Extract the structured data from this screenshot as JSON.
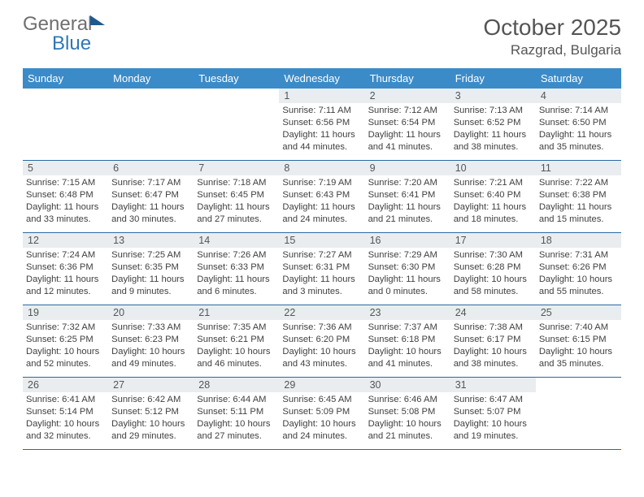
{
  "logo": {
    "text1": "General",
    "text2": "Blue"
  },
  "title": "October 2025",
  "location": "Razgrad, Bulgaria",
  "colors": {
    "header_bg": "#3b8bc8",
    "header_text": "#ffffff",
    "daynum_bg": "#e9edf0",
    "row_border": "#2a6aa0",
    "text": "#404040",
    "logo_gray": "#6f6f6f",
    "logo_blue": "#2e77b8"
  },
  "day_headers": [
    "Sunday",
    "Monday",
    "Tuesday",
    "Wednesday",
    "Thursday",
    "Friday",
    "Saturday"
  ],
  "weeks": [
    [
      {
        "blank": true
      },
      {
        "blank": true
      },
      {
        "blank": true
      },
      {
        "num": "1",
        "sunrise": "Sunrise: 7:11 AM",
        "sunset": "Sunset: 6:56 PM",
        "daylight": "Daylight: 11 hours and 44 minutes."
      },
      {
        "num": "2",
        "sunrise": "Sunrise: 7:12 AM",
        "sunset": "Sunset: 6:54 PM",
        "daylight": "Daylight: 11 hours and 41 minutes."
      },
      {
        "num": "3",
        "sunrise": "Sunrise: 7:13 AM",
        "sunset": "Sunset: 6:52 PM",
        "daylight": "Daylight: 11 hours and 38 minutes."
      },
      {
        "num": "4",
        "sunrise": "Sunrise: 7:14 AM",
        "sunset": "Sunset: 6:50 PM",
        "daylight": "Daylight: 11 hours and 35 minutes."
      }
    ],
    [
      {
        "num": "5",
        "sunrise": "Sunrise: 7:15 AM",
        "sunset": "Sunset: 6:48 PM",
        "daylight": "Daylight: 11 hours and 33 minutes."
      },
      {
        "num": "6",
        "sunrise": "Sunrise: 7:17 AM",
        "sunset": "Sunset: 6:47 PM",
        "daylight": "Daylight: 11 hours and 30 minutes."
      },
      {
        "num": "7",
        "sunrise": "Sunrise: 7:18 AM",
        "sunset": "Sunset: 6:45 PM",
        "daylight": "Daylight: 11 hours and 27 minutes."
      },
      {
        "num": "8",
        "sunrise": "Sunrise: 7:19 AM",
        "sunset": "Sunset: 6:43 PM",
        "daylight": "Daylight: 11 hours and 24 minutes."
      },
      {
        "num": "9",
        "sunrise": "Sunrise: 7:20 AM",
        "sunset": "Sunset: 6:41 PM",
        "daylight": "Daylight: 11 hours and 21 minutes."
      },
      {
        "num": "10",
        "sunrise": "Sunrise: 7:21 AM",
        "sunset": "Sunset: 6:40 PM",
        "daylight": "Daylight: 11 hours and 18 minutes."
      },
      {
        "num": "11",
        "sunrise": "Sunrise: 7:22 AM",
        "sunset": "Sunset: 6:38 PM",
        "daylight": "Daylight: 11 hours and 15 minutes."
      }
    ],
    [
      {
        "num": "12",
        "sunrise": "Sunrise: 7:24 AM",
        "sunset": "Sunset: 6:36 PM",
        "daylight": "Daylight: 11 hours and 12 minutes."
      },
      {
        "num": "13",
        "sunrise": "Sunrise: 7:25 AM",
        "sunset": "Sunset: 6:35 PM",
        "daylight": "Daylight: 11 hours and 9 minutes."
      },
      {
        "num": "14",
        "sunrise": "Sunrise: 7:26 AM",
        "sunset": "Sunset: 6:33 PM",
        "daylight": "Daylight: 11 hours and 6 minutes."
      },
      {
        "num": "15",
        "sunrise": "Sunrise: 7:27 AM",
        "sunset": "Sunset: 6:31 PM",
        "daylight": "Daylight: 11 hours and 3 minutes."
      },
      {
        "num": "16",
        "sunrise": "Sunrise: 7:29 AM",
        "sunset": "Sunset: 6:30 PM",
        "daylight": "Daylight: 11 hours and 0 minutes."
      },
      {
        "num": "17",
        "sunrise": "Sunrise: 7:30 AM",
        "sunset": "Sunset: 6:28 PM",
        "daylight": "Daylight: 10 hours and 58 minutes."
      },
      {
        "num": "18",
        "sunrise": "Sunrise: 7:31 AM",
        "sunset": "Sunset: 6:26 PM",
        "daylight": "Daylight: 10 hours and 55 minutes."
      }
    ],
    [
      {
        "num": "19",
        "sunrise": "Sunrise: 7:32 AM",
        "sunset": "Sunset: 6:25 PM",
        "daylight": "Daylight: 10 hours and 52 minutes."
      },
      {
        "num": "20",
        "sunrise": "Sunrise: 7:33 AM",
        "sunset": "Sunset: 6:23 PM",
        "daylight": "Daylight: 10 hours and 49 minutes."
      },
      {
        "num": "21",
        "sunrise": "Sunrise: 7:35 AM",
        "sunset": "Sunset: 6:21 PM",
        "daylight": "Daylight: 10 hours and 46 minutes."
      },
      {
        "num": "22",
        "sunrise": "Sunrise: 7:36 AM",
        "sunset": "Sunset: 6:20 PM",
        "daylight": "Daylight: 10 hours and 43 minutes."
      },
      {
        "num": "23",
        "sunrise": "Sunrise: 7:37 AM",
        "sunset": "Sunset: 6:18 PM",
        "daylight": "Daylight: 10 hours and 41 minutes."
      },
      {
        "num": "24",
        "sunrise": "Sunrise: 7:38 AM",
        "sunset": "Sunset: 6:17 PM",
        "daylight": "Daylight: 10 hours and 38 minutes."
      },
      {
        "num": "25",
        "sunrise": "Sunrise: 7:40 AM",
        "sunset": "Sunset: 6:15 PM",
        "daylight": "Daylight: 10 hours and 35 minutes."
      }
    ],
    [
      {
        "num": "26",
        "sunrise": "Sunrise: 6:41 AM",
        "sunset": "Sunset: 5:14 PM",
        "daylight": "Daylight: 10 hours and 32 minutes."
      },
      {
        "num": "27",
        "sunrise": "Sunrise: 6:42 AM",
        "sunset": "Sunset: 5:12 PM",
        "daylight": "Daylight: 10 hours and 29 minutes."
      },
      {
        "num": "28",
        "sunrise": "Sunrise: 6:44 AM",
        "sunset": "Sunset: 5:11 PM",
        "daylight": "Daylight: 10 hours and 27 minutes."
      },
      {
        "num": "29",
        "sunrise": "Sunrise: 6:45 AM",
        "sunset": "Sunset: 5:09 PM",
        "daylight": "Daylight: 10 hours and 24 minutes."
      },
      {
        "num": "30",
        "sunrise": "Sunrise: 6:46 AM",
        "sunset": "Sunset: 5:08 PM",
        "daylight": "Daylight: 10 hours and 21 minutes."
      },
      {
        "num": "31",
        "sunrise": "Sunrise: 6:47 AM",
        "sunset": "Sunset: 5:07 PM",
        "daylight": "Daylight: 10 hours and 19 minutes."
      },
      {
        "blank": true
      }
    ]
  ]
}
